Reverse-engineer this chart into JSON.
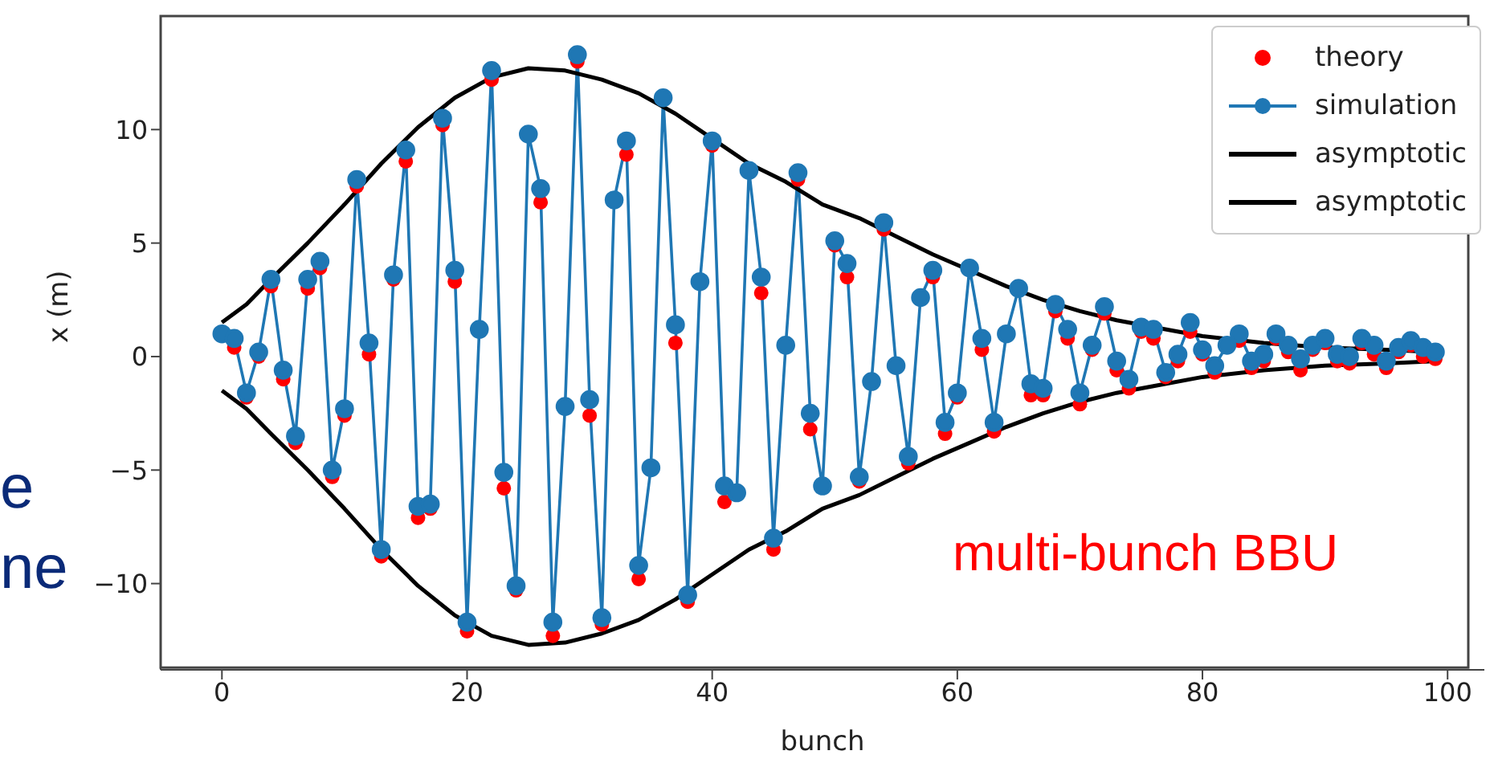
{
  "chart_data": {
    "type": "line",
    "xlabel": "bunch",
    "ylabel": "x (m)",
    "x": [
      0,
      1,
      2,
      3,
      4,
      5,
      6,
      7,
      8,
      9,
      10,
      11,
      12,
      13,
      14,
      15,
      16,
      17,
      18,
      19,
      20,
      21,
      22,
      23,
      24,
      25,
      26,
      27,
      28,
      29,
      30,
      31,
      32,
      33,
      34,
      35,
      36,
      37,
      38,
      39,
      40,
      41,
      42,
      43,
      44,
      45,
      46,
      47,
      48,
      49,
      50,
      51,
      52,
      53,
      54,
      55,
      56,
      57,
      58,
      59,
      60,
      61,
      62,
      63,
      64,
      65,
      66,
      67,
      68,
      69,
      70,
      71,
      72,
      73,
      74,
      75,
      76,
      77,
      78,
      79,
      80,
      81,
      82,
      83,
      84,
      85,
      86,
      87,
      88,
      89,
      90,
      91,
      92,
      93,
      94,
      95,
      96,
      97,
      98,
      99
    ],
    "series": [
      {
        "name": "theory",
        "type": "scatter",
        "color": "#ff0000",
        "values": [
          null,
          0.4,
          -1.8,
          0.0,
          3.1,
          -1.0,
          -3.8,
          3.0,
          3.9,
          -5.3,
          -2.6,
          7.5,
          0.1,
          -8.8,
          3.4,
          8.6,
          -7.1,
          -6.7,
          10.2,
          3.3,
          -12.1,
          null,
          12.2,
          -5.8,
          -10.3,
          null,
          6.8,
          -12.3,
          null,
          13.0,
          -2.6,
          -11.8,
          null,
          8.9,
          -9.8,
          null,
          null,
          0.6,
          -10.8,
          null,
          9.3,
          -6.4,
          null,
          null,
          2.8,
          -8.5,
          null,
          7.8,
          -3.2,
          null,
          4.9,
          3.5,
          -5.5,
          null,
          5.6,
          null,
          -4.7,
          null,
          3.5,
          -3.4,
          -1.8,
          null,
          0.3,
          -3.3,
          null,
          null,
          -1.7,
          -1.7,
          2.0,
          0.8,
          -2.1,
          0.3,
          1.9,
          -0.6,
          -1.4,
          1.1,
          0.8,
          -0.9,
          -0.2,
          1.1,
          0.1,
          -0.7,
          null,
          0.7,
          -0.5,
          -0.2,
          0.8,
          0.2,
          -0.6,
          0.3,
          0.6,
          -0.2,
          -0.3,
          0.6,
          0.1,
          -0.5,
          0.2,
          0.5,
          0.0,
          -0.1
        ]
      },
      {
        "name": "simulation",
        "color": "#1f77b4",
        "marker": "circle",
        "values": [
          1.0,
          0.8,
          -1.6,
          0.2,
          3.4,
          -0.6,
          -3.5,
          3.4,
          4.2,
          -5.0,
          -2.3,
          7.8,
          0.6,
          -8.5,
          3.6,
          9.1,
          -6.6,
          -6.5,
          10.5,
          3.8,
          -11.7,
          1.2,
          12.6,
          -5.1,
          -10.1,
          9.8,
          7.4,
          -11.7,
          -2.2,
          13.3,
          -1.9,
          -11.5,
          6.9,
          9.5,
          -9.2,
          -4.9,
          11.4,
          1.4,
          -10.5,
          3.3,
          9.5,
          -5.7,
          -6.0,
          8.2,
          3.5,
          -8.0,
          0.5,
          8.1,
          -2.5,
          -5.7,
          5.1,
          4.1,
          -5.3,
          -1.1,
          5.9,
          -0.4,
          -4.4,
          2.6,
          3.8,
          -2.9,
          -1.6,
          3.9,
          0.8,
          -2.9,
          1.0,
          3.0,
          -1.2,
          -1.4,
          2.3,
          1.2,
          -1.6,
          0.5,
          2.2,
          -0.2,
          -1.0,
          1.3,
          1.2,
          -0.7,
          0.1,
          1.5,
          0.3,
          -0.4,
          0.5,
          1.0,
          -0.2,
          0.1,
          1.0,
          0.5,
          -0.1,
          0.5,
          0.8,
          0.1,
          0.0,
          0.8,
          0.5,
          -0.2,
          0.4,
          0.7,
          0.4,
          0.2
        ]
      },
      {
        "name": "asymptotic",
        "color": "#000000",
        "marker": "none",
        "x": [
          0,
          2,
          4,
          7,
          10,
          13,
          16,
          19,
          22,
          25,
          28,
          31,
          34,
          37,
          40,
          43,
          46,
          49,
          52,
          55,
          58,
          61,
          64,
          67,
          70,
          73,
          76,
          80,
          85,
          90,
          95,
          99
        ],
        "values": [
          1.5,
          2.3,
          3.4,
          5.0,
          6.7,
          8.5,
          10.1,
          11.4,
          12.3,
          12.7,
          12.6,
          12.2,
          11.6,
          10.7,
          9.6,
          8.5,
          7.7,
          6.7,
          6.1,
          5.3,
          4.5,
          3.8,
          3.1,
          2.5,
          2.0,
          1.6,
          1.3,
          0.9,
          0.6,
          0.4,
          0.3,
          0.2
        ]
      },
      {
        "name": "asymptotic",
        "color": "#000000",
        "marker": "none",
        "x": [
          0,
          2,
          4,
          7,
          10,
          13,
          16,
          19,
          22,
          25,
          28,
          31,
          34,
          37,
          40,
          43,
          46,
          49,
          52,
          55,
          58,
          61,
          64,
          67,
          70,
          73,
          76,
          80,
          85,
          90,
          95,
          99
        ],
        "values": [
          -1.5,
          -2.3,
          -3.4,
          -5.0,
          -6.7,
          -8.5,
          -10.1,
          -11.4,
          -12.3,
          -12.7,
          -12.6,
          -12.2,
          -11.6,
          -10.7,
          -9.6,
          -8.5,
          -7.7,
          -6.7,
          -6.1,
          -5.3,
          -4.5,
          -3.8,
          -3.1,
          -2.5,
          -2.0,
          -1.6,
          -1.3,
          -0.9,
          -0.6,
          -0.4,
          -0.3,
          -0.2
        ]
      }
    ],
    "xlim": [
      -5,
      103
    ],
    "xticks": [
      0,
      20,
      40,
      60,
      80,
      100
    ],
    "ylim": [
      -13.8,
      15
    ],
    "yticks": [
      -10,
      -5,
      0,
      5,
      10
    ],
    "grid": false,
    "legend": "top right",
    "line_style": "solid",
    "annotations": [
      "multi-bunch BBU",
      "e",
      "ne"
    ]
  }
}
